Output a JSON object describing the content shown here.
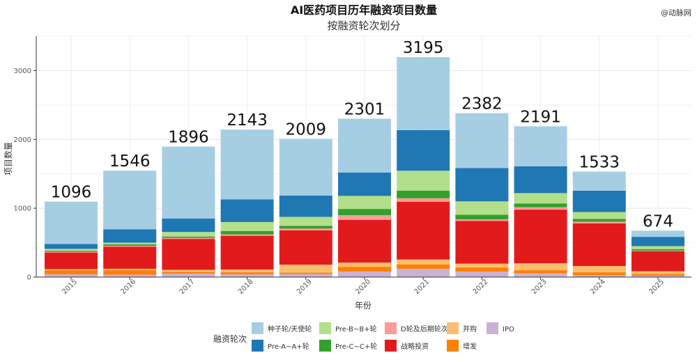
{
  "watermark": "@动脉网",
  "chart_data": {
    "type": "bar",
    "stacked": true,
    "title": "AI医药项目历年融资项目数量",
    "subtitle": "按融资轮次划分",
    "xlabel": "年份",
    "ylabel": "项目数量",
    "ylim": [
      0,
      3500
    ],
    "yticks": [
      0,
      1000,
      2000,
      3000
    ],
    "grid": true,
    "legend_title": "融资轮次",
    "legend_position": "bottom",
    "categories": [
      "2015",
      "2016",
      "2017",
      "2018",
      "2019",
      "2020",
      "2021",
      "2022",
      "2023",
      "2024",
      "2025"
    ],
    "totals": [
      1096,
      1546,
      1896,
      2143,
      2009,
      2301,
      3195,
      2382,
      2191,
      1533,
      674
    ],
    "series": [
      {
        "name": "IPO",
        "color": "#cab2d6",
        "values": [
          40,
          35,
          50,
          40,
          45,
          80,
          120,
          80,
          55,
          30,
          20
        ]
      },
      {
        "name": "增发",
        "color": "#ff7f00",
        "values": [
          60,
          65,
          25,
          30,
          20,
          70,
          65,
          60,
          45,
          40,
          25
        ]
      },
      {
        "name": "并购",
        "color": "#fdbf6f",
        "values": [
          15,
          20,
          30,
          40,
          115,
          60,
          70,
          55,
          100,
          90,
          40
        ]
      },
      {
        "name": "战略投资",
        "color": "#e31a1c",
        "values": [
          240,
          320,
          450,
          490,
          500,
          620,
          840,
          620,
          780,
          620,
          290
        ]
      },
      {
        "name": "D轮及后期轮次",
        "color": "#fb9a99",
        "values": [
          10,
          15,
          15,
          20,
          25,
          70,
          50,
          25,
          35,
          25,
          10
        ]
      },
      {
        "name": "Pre-C~C+轮",
        "color": "#33a02c",
        "values": [
          15,
          20,
          20,
          50,
          40,
          90,
          110,
          65,
          55,
          40,
          20
        ]
      },
      {
        "name": "Pre-B~B+轮",
        "color": "#b2df8a",
        "values": [
          30,
          25,
          65,
          130,
          130,
          190,
          290,
          195,
          150,
          100,
          45
        ]
      },
      {
        "name": "Pre-A~A+轮",
        "color": "#1f78b4",
        "values": [
          70,
          195,
          195,
          330,
          310,
          340,
          590,
          485,
          390,
          310,
          135
        ]
      },
      {
        "name": "种子轮/天使轮",
        "color": "#a6cee3",
        "values": [
          616,
          851,
          1046,
          1013,
          824,
          781,
          1060,
          797,
          581,
          278,
          89
        ]
      }
    ]
  }
}
